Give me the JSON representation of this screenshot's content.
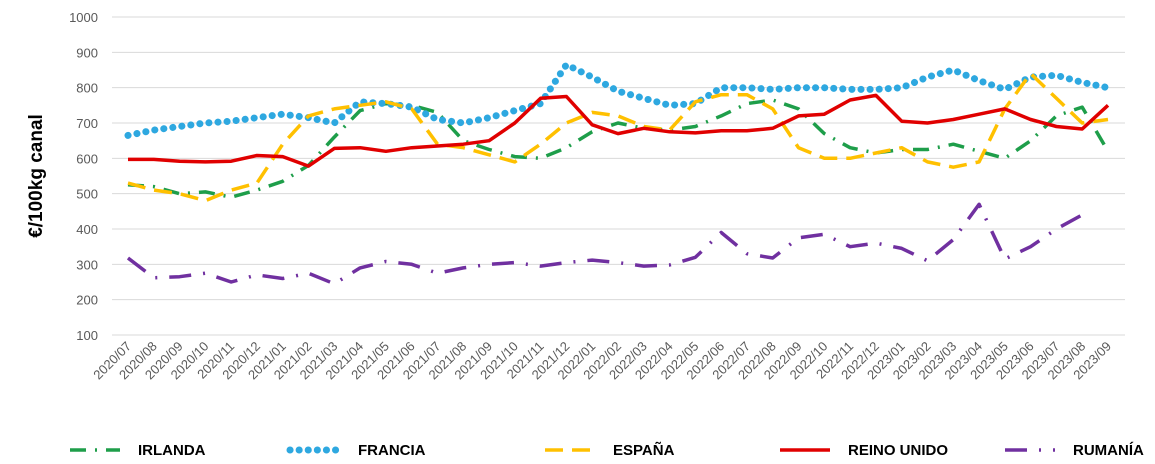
{
  "chart_data": {
    "type": "line",
    "y_label": "€/100kg canal",
    "categories": [
      "2020/07",
      "2020/08",
      "2020/09",
      "2020/10",
      "2020/11",
      "2020/12",
      "2021/01",
      "2021/02",
      "2021/03",
      "2021/04",
      "2021/05",
      "2021/06",
      "2021/07",
      "2021/08",
      "2021/09",
      "2021/10",
      "2021/11",
      "2021/12",
      "2022/01",
      "2022/02",
      "2022/03",
      "2022/04",
      "2022/05",
      "2022/06",
      "2022/07",
      "2022/08",
      "2022/09",
      "2022/10",
      "2022/11",
      "2022/12",
      "2023/01",
      "2023/02",
      "2023/03",
      "2023/04",
      "2023/05",
      "2023/06",
      "2023/07",
      "2023/08",
      "2023/09"
    ],
    "series": [
      {
        "name": "IRLANDA",
        "color": "#1e9e4a",
        "values": [
          525,
          520,
          500,
          505,
          490,
          510,
          535,
          580,
          660,
          735,
          755,
          750,
          730,
          650,
          625,
          605,
          600,
          630,
          675,
          700,
          685,
          680,
          690,
          720,
          755,
          765,
          740,
          670,
          630,
          615,
          625,
          625,
          640,
          620,
          600,
          650,
          720,
          745,
          620
        ]
      },
      {
        "name": "FRANCIA",
        "color": "#2ea8e0",
        "values": [
          665,
          680,
          690,
          700,
          705,
          715,
          725,
          715,
          700,
          760,
          755,
          745,
          710,
          700,
          715,
          735,
          755,
          865,
          830,
          790,
          770,
          750,
          755,
          800,
          800,
          795,
          800,
          800,
          795,
          795,
          800,
          830,
          850,
          820,
          795,
          830,
          835,
          815,
          800
        ]
      },
      {
        "name": "ESPAÑA",
        "color": "#ffc000",
        "values": [
          530,
          510,
          500,
          480,
          510,
          530,
          640,
          720,
          740,
          750,
          760,
          740,
          640,
          630,
          610,
          590,
          640,
          700,
          730,
          720,
          690,
          680,
          760,
          780,
          780,
          740,
          630,
          600,
          600,
          615,
          630,
          590,
          575,
          590,
          740,
          840,
          770,
          700,
          710
        ]
      },
      {
        "name": "REINO UNIDO",
        "color": "#e00000",
        "values": [
          597,
          597,
          592,
          590,
          592,
          608,
          605,
          578,
          628,
          630,
          620,
          630,
          635,
          640,
          650,
          700,
          770,
          775,
          695,
          670,
          685,
          675,
          672,
          678,
          678,
          685,
          720,
          725,
          765,
          778,
          705,
          700,
          710,
          725,
          740,
          710,
          690,
          683,
          750
        ]
      },
      {
        "name": "RUMANÍA",
        "color": "#7030a0",
        "values": [
          318,
          262,
          265,
          275,
          250,
          270,
          260,
          275,
          245,
          290,
          308,
          300,
          275,
          290,
          300,
          305,
          295,
          305,
          312,
          305,
          295,
          298,
          320,
          390,
          330,
          318,
          375,
          385,
          350,
          360,
          345,
          310,
          370,
          470,
          315,
          350,
          400,
          440,
          null
        ]
      }
    ],
    "ylim": [
      100,
      1000
    ],
    "yticks": [
      100,
      200,
      300,
      400,
      500,
      600,
      700,
      800,
      900,
      1000
    ],
    "grid": true,
    "legend": "bottom"
  }
}
